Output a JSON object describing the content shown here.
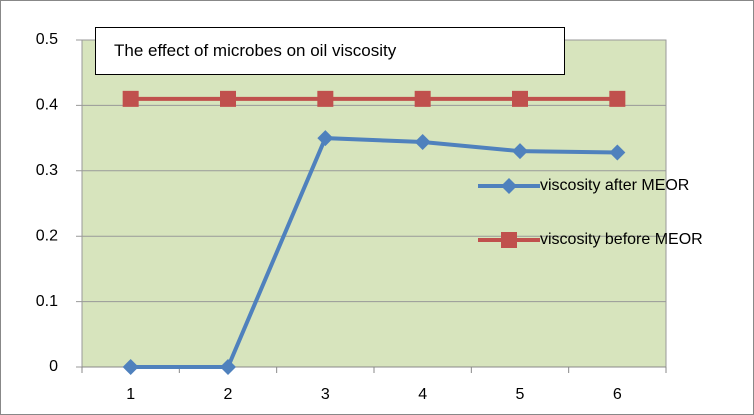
{
  "chart_data": {
    "type": "line",
    "title": "The effect of microbes on oil viscosity",
    "categories": [
      1,
      2,
      3,
      4,
      5,
      6
    ],
    "series": [
      {
        "name": "viscosity after MEOR",
        "color": "#4f81bd",
        "marker": "diamond",
        "values": [
          0,
          0,
          0.35,
          0.344,
          0.33,
          0.328
        ]
      },
      {
        "name": "viscosity before MEOR",
        "color": "#c0504d",
        "marker": "square",
        "values": [
          0.41,
          0.41,
          0.41,
          0.41,
          0.41,
          0.41
        ]
      }
    ],
    "ylim": [
      0,
      0.5
    ],
    "yticks": [
      0,
      0.1,
      0.2,
      0.3,
      0.4,
      0.5
    ],
    "grid": true,
    "legend": "right"
  }
}
